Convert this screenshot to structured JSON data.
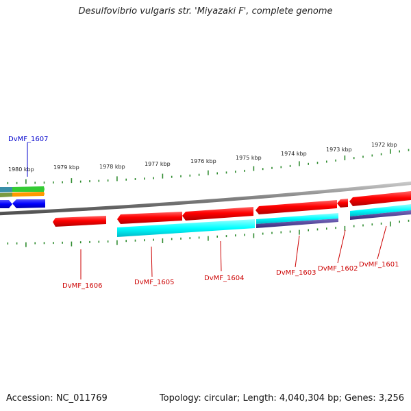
{
  "title": "Desulfovibrio vulgaris str. 'Miyazaki F', complete genome",
  "footer": {
    "accession": "Accession: NC_011769",
    "topology": "Topology: circular; Length: 4,040,304 bp; Genes: 3,256"
  },
  "colors": {
    "backbone": "#808080",
    "tick": "#2e8b2e",
    "gene_label": "#cc0000",
    "gene_label_blue": "#0000cc",
    "gene": "#ff0000",
    "track_cyan": "#00ffff",
    "track_purple": "#4b3c96",
    "track_green": "#33cc33",
    "track_orange": "#ff9900",
    "track_teal": "#3a8fa8",
    "track_blue": "#0000ff"
  },
  "scale_labels": [
    "1980 kbp",
    "1979 kbp",
    "1978 kbp",
    "1977 kbp",
    "1976 kbp",
    "1975 kbp",
    "1974 kbp",
    "1973 kbp",
    "1972 kbp"
  ],
  "genes": [
    {
      "id": "DvMF_1601",
      "label": "DvMF_1601",
      "color": "red"
    },
    {
      "id": "DvMF_1602",
      "label": "DvMF_1602",
      "color": "red"
    },
    {
      "id": "DvMF_1603",
      "label": "DvMF_1603",
      "color": "red"
    },
    {
      "id": "DvMF_1604",
      "label": "DvMF_1604",
      "color": "red"
    },
    {
      "id": "DvMF_1605",
      "label": "DvMF_1605",
      "color": "red"
    },
    {
      "id": "DvMF_1606",
      "label": "DvMF_1606",
      "color": "red"
    },
    {
      "id": "DvMF_1607",
      "label": "DvMF_1607",
      "color": "blue"
    }
  ]
}
